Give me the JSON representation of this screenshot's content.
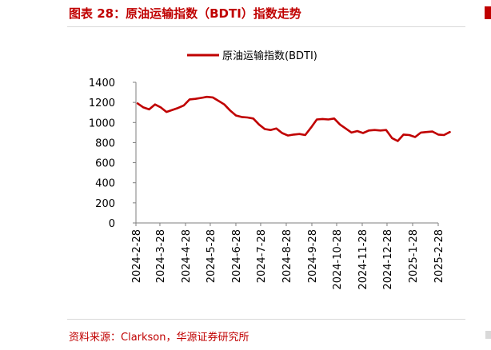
{
  "header": {
    "title": "图表 28：原油运输指数（BDTI）指数走势"
  },
  "footer": {
    "source": "资料来源：Clarkson，华源证券研究所"
  },
  "colors": {
    "accent": "#c00000",
    "axis": "#7f7f7f",
    "text": "#000000"
  },
  "chart_data": {
    "type": "line",
    "title": "",
    "xlabel": "",
    "ylabel": "",
    "ylim": [
      0,
      1400
    ],
    "ytick_step": 200,
    "grid": false,
    "legend_position": "top-center",
    "x_tick_labels": [
      "2024-2-28",
      "2024-3-28",
      "2024-4-28",
      "2024-5-28",
      "2024-6-28",
      "2024-7-28",
      "2024-8-28",
      "2024-9-28",
      "2024-10-28",
      "2024-11-28",
      "2024-12-28",
      "2025-1-28",
      "2025-2-28"
    ],
    "series": [
      {
        "name": "原油运输指数(BDTI)",
        "color": "#c00000",
        "points": [
          [
            "2024-03-01",
            1190
          ],
          [
            "2024-03-08",
            1150
          ],
          [
            "2024-03-15",
            1130
          ],
          [
            "2024-03-22",
            1180
          ],
          [
            "2024-03-29",
            1150
          ],
          [
            "2024-04-05",
            1105
          ],
          [
            "2024-04-12",
            1125
          ],
          [
            "2024-04-19",
            1145
          ],
          [
            "2024-04-26",
            1170
          ],
          [
            "2024-05-03",
            1230
          ],
          [
            "2024-05-10",
            1235
          ],
          [
            "2024-05-17",
            1245
          ],
          [
            "2024-05-24",
            1255
          ],
          [
            "2024-05-31",
            1250
          ],
          [
            "2024-06-07",
            1215
          ],
          [
            "2024-06-14",
            1180
          ],
          [
            "2024-06-21",
            1120
          ],
          [
            "2024-06-28",
            1070
          ],
          [
            "2024-07-05",
            1055
          ],
          [
            "2024-07-12",
            1050
          ],
          [
            "2024-07-19",
            1040
          ],
          [
            "2024-07-26",
            980
          ],
          [
            "2024-08-02",
            935
          ],
          [
            "2024-08-09",
            925
          ],
          [
            "2024-08-16",
            940
          ],
          [
            "2024-08-23",
            895
          ],
          [
            "2024-08-30",
            870
          ],
          [
            "2024-09-06",
            880
          ],
          [
            "2024-09-13",
            885
          ],
          [
            "2024-09-20",
            875
          ],
          [
            "2024-09-27",
            950
          ],
          [
            "2024-10-04",
            1030
          ],
          [
            "2024-10-11",
            1035
          ],
          [
            "2024-10-18",
            1030
          ],
          [
            "2024-10-25",
            1040
          ],
          [
            "2024-11-01",
            980
          ],
          [
            "2024-11-08",
            940
          ],
          [
            "2024-11-15",
            900
          ],
          [
            "2024-11-22",
            915
          ],
          [
            "2024-11-29",
            895
          ],
          [
            "2024-12-06",
            920
          ],
          [
            "2024-12-13",
            925
          ],
          [
            "2024-12-20",
            920
          ],
          [
            "2024-12-27",
            925
          ],
          [
            "2025-01-03",
            845
          ],
          [
            "2025-01-10",
            815
          ],
          [
            "2025-01-17",
            880
          ],
          [
            "2025-01-24",
            875
          ],
          [
            "2025-01-31",
            855
          ],
          [
            "2025-02-07",
            900
          ],
          [
            "2025-02-14",
            905
          ],
          [
            "2025-02-21",
            910
          ],
          [
            "2025-02-28",
            880
          ],
          [
            "2025-03-07",
            875
          ],
          [
            "2025-03-14",
            905
          ]
        ]
      }
    ]
  }
}
